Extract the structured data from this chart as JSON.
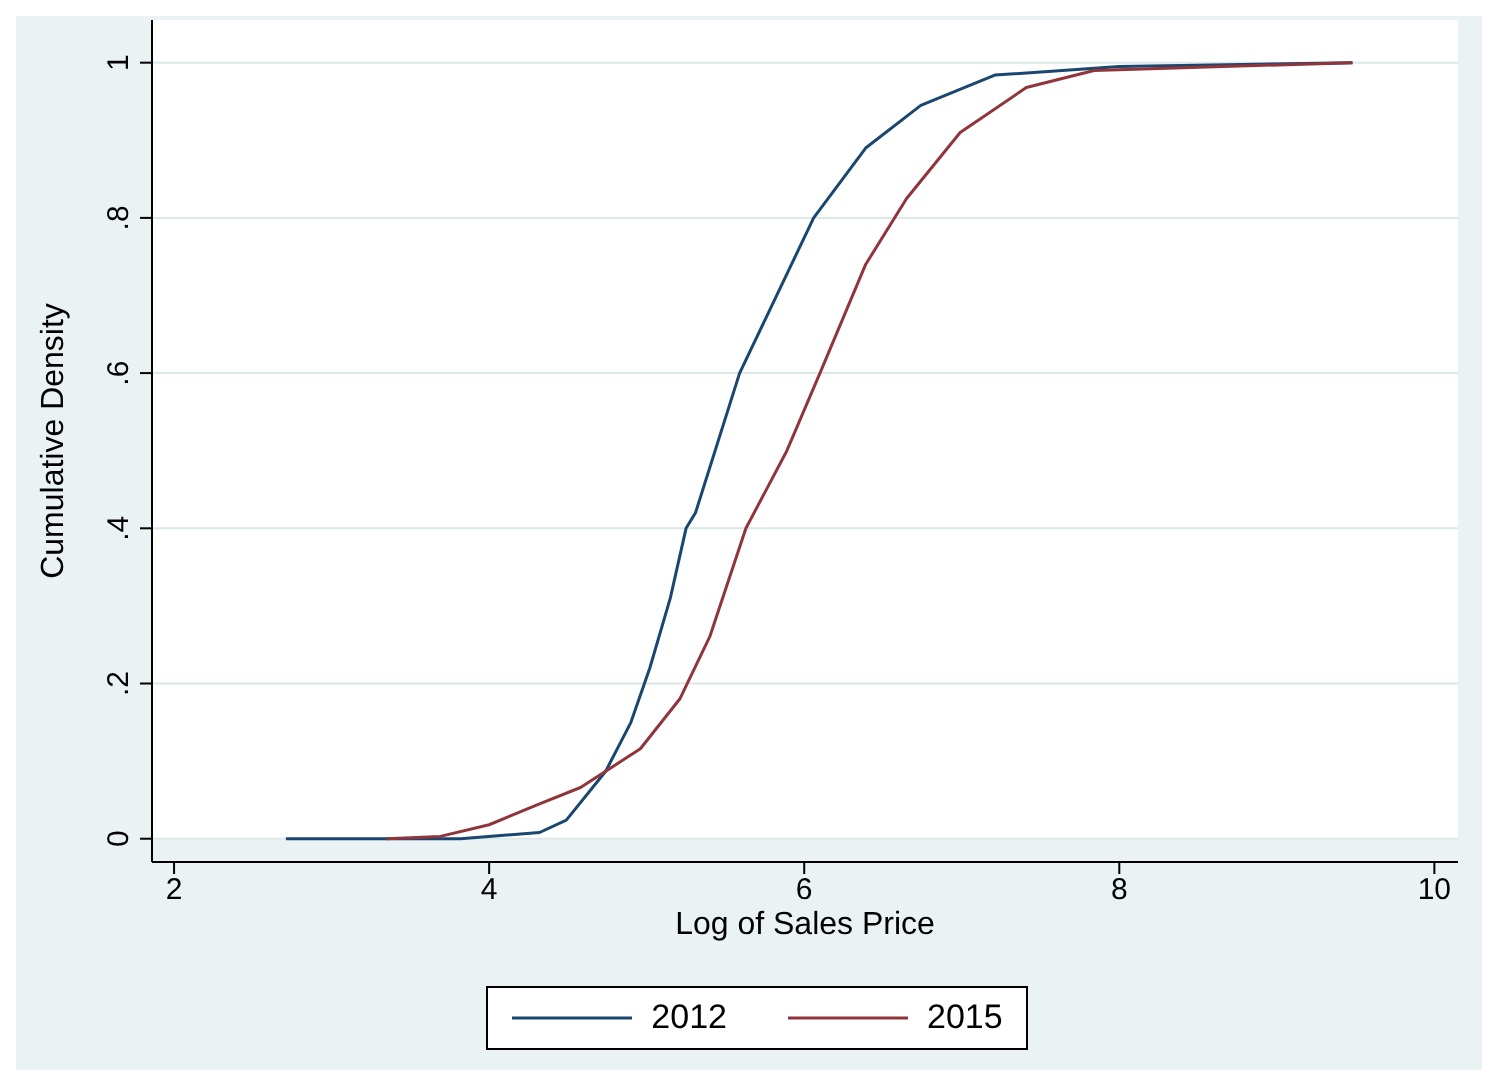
{
  "chart_data": {
    "type": "line",
    "xlabel": "Log of Sales Price",
    "ylabel": "Cumulative Density",
    "xlim": [
      1.86,
      10.15
    ],
    "ylim": [
      -0.03,
      1.055
    ],
    "xticks": [
      2,
      4,
      6,
      8,
      10
    ],
    "yticks": [
      {
        "value": 0,
        "label": "0"
      },
      {
        "value": 0.2,
        "label": ".2"
      },
      {
        "value": 0.4,
        "label": ".4"
      },
      {
        "value": 0.6,
        "label": ".6"
      },
      {
        "value": 0.8,
        "label": ".8"
      },
      {
        "value": 1,
        "label": "1"
      }
    ],
    "grid": "y",
    "legend": "bottom",
    "line_style": "solid",
    "marker": "none",
    "series": [
      {
        "name": "2012",
        "color": "#1a476f",
        "x": [
          2.71,
          3.82,
          4.32,
          4.49,
          4.74,
          4.9,
          5.02,
          5.15,
          5.25,
          5.31,
          5.59,
          6.06,
          6.39,
          6.74,
          7.21,
          8.0,
          9.48
        ],
        "values": [
          0,
          0,
          0.008,
          0.024,
          0.087,
          0.15,
          0.22,
          0.31,
          0.4,
          0.42,
          0.6,
          0.8,
          0.89,
          0.945,
          0.984,
          0.995,
          1
        ]
      },
      {
        "name": "2015",
        "color": "#90353b",
        "x": [
          3.35,
          3.69,
          4.0,
          4.32,
          4.58,
          4.74,
          4.96,
          5.21,
          5.4,
          5.63,
          5.89,
          6.1,
          6.39,
          6.65,
          6.99,
          7.41,
          7.84,
          9.48
        ],
        "values": [
          0,
          0.003,
          0.018,
          0.045,
          0.066,
          0.087,
          0.116,
          0.18,
          0.26,
          0.4,
          0.5,
          0.6,
          0.74,
          0.825,
          0.91,
          0.968,
          0.99,
          1
        ]
      }
    ]
  }
}
